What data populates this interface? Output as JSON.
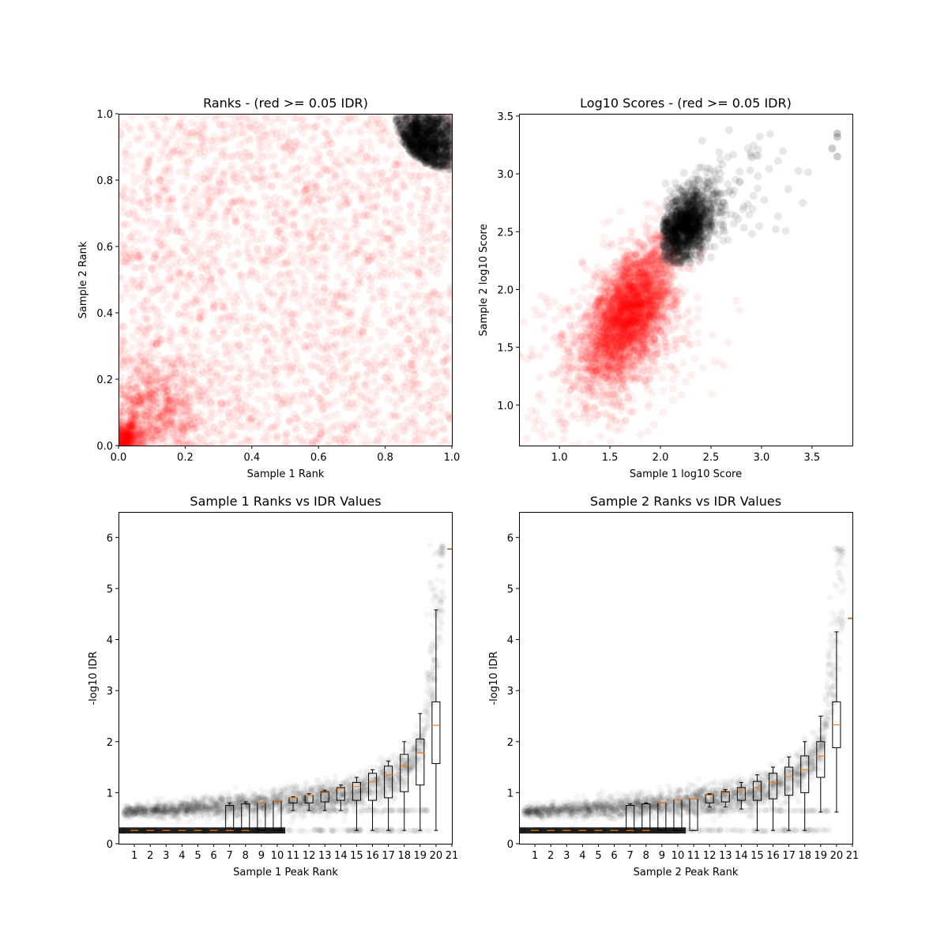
{
  "chart_data": [
    {
      "type": "scatter",
      "title": "Ranks - (red >= 0.05 IDR)",
      "xlabel": "Sample 1 Rank",
      "ylabel": "Sample 2 Rank",
      "xlim": [
        0,
        1
      ],
      "ylim": [
        0,
        1
      ],
      "xticks": [
        "0.0",
        "0.2",
        "0.4",
        "0.6",
        "0.8",
        "1.0"
      ],
      "yticks": [
        "0.0",
        "0.2",
        "0.4",
        "0.6",
        "0.8",
        "1.0"
      ],
      "series": [
        {
          "color": "#ff0000",
          "opacity": 0.06,
          "clusters": [
            {
              "cx": 0.5,
              "cy": 0.5,
              "sx": 0.3,
              "sy": 0.3,
              "n": 2600,
              "uniform": true
            },
            {
              "cx": 0.1,
              "cy": 0.1,
              "sx": 0.09,
              "sy": 0.09,
              "n": 900
            },
            {
              "cx": 0.02,
              "cy": 0.02,
              "sx": 0.025,
              "sy": 0.025,
              "n": 450
            }
          ]
        },
        {
          "color": "#000000",
          "opacity": 0.08,
          "clusters": [
            {
              "cx": 0.91,
              "cy": 0.91,
              "sx": 0.07,
              "sy": 0.07,
              "n": 1300,
              "radius": 0.17
            }
          ]
        }
      ]
    },
    {
      "type": "scatter",
      "title": "Log10 Scores - (red >= 0.05 IDR)",
      "xlabel": "Sample 1 log10 Score",
      "ylabel": "Sample 2 log10 Score",
      "xlim": [
        0.6,
        3.9
      ],
      "ylim": [
        0.65,
        3.52
      ],
      "xticks": [
        "1.0",
        "1.5",
        "2.0",
        "2.5",
        "3.0",
        "3.5"
      ],
      "yticks": [
        "1.0",
        "1.5",
        "2.0",
        "2.5",
        "3.0",
        "3.5"
      ],
      "series": [
        {
          "color": "#ff0000",
          "opacity": 0.06,
          "clusters": [
            {
              "cx": 1.7,
              "cy": 1.8,
              "sx": 0.22,
              "sy": 0.3,
              "n": 3200,
              "rho": 0.55
            },
            {
              "cx": 1.5,
              "cy": 1.4,
              "sx": 0.45,
              "sy": 0.4,
              "n": 500,
              "rho": 0.3
            }
          ]
        },
        {
          "color": "#000000",
          "opacity": 0.09,
          "clusters": [
            {
              "cx": 2.25,
              "cy": 2.55,
              "sx": 0.15,
              "sy": 0.17,
              "n": 1300,
              "rho": 0.4,
              "minx": 2.02,
              "miny": 2.22
            },
            {
              "cx": 2.7,
              "cy": 2.9,
              "sx": 0.3,
              "sy": 0.25,
              "n": 60,
              "rho": 0.3,
              "minx": 2.3,
              "miny": 2.3
            }
          ]
        }
      ],
      "outliers": [
        [
          3.75,
          3.35
        ],
        [
          3.75,
          3.32
        ],
        [
          3.75,
          3.15
        ],
        [
          3.7,
          3.22
        ]
      ]
    },
    {
      "type": "box",
      "title": "Sample 1 Ranks vs IDR Values",
      "xlabel": "Sample 1 Peak Rank",
      "ylabel": "-log10 IDR",
      "xlim": [
        0,
        21
      ],
      "ylim": [
        0,
        6.5
      ],
      "xticks": [
        "1",
        "2",
        "3",
        "4",
        "5",
        "6",
        "7",
        "8",
        "9",
        "10",
        "11",
        "12",
        "13",
        "14",
        "15",
        "16",
        "17",
        "18",
        "19",
        "20",
        "21"
      ],
      "yticks": [
        "0",
        "1",
        "2",
        "3",
        "4",
        "5",
        "6"
      ],
      "boxes": [
        {
          "pos": 1,
          "q1": 0.26,
          "med": 0.26,
          "q3": 0.26,
          "lo": 0.26,
          "hi": 0.26
        },
        {
          "pos": 2,
          "q1": 0.26,
          "med": 0.26,
          "q3": 0.26,
          "lo": 0.26,
          "hi": 0.26
        },
        {
          "pos": 3,
          "q1": 0.26,
          "med": 0.26,
          "q3": 0.26,
          "lo": 0.26,
          "hi": 0.26
        },
        {
          "pos": 4,
          "q1": 0.26,
          "med": 0.26,
          "q3": 0.26,
          "lo": 0.26,
          "hi": 0.26
        },
        {
          "pos": 5,
          "q1": 0.26,
          "med": 0.26,
          "q3": 0.26,
          "lo": 0.26,
          "hi": 0.26
        },
        {
          "pos": 6,
          "q1": 0.26,
          "med": 0.26,
          "q3": 0.26,
          "lo": 0.26,
          "hi": 0.26
        },
        {
          "pos": 7,
          "q1": 0.26,
          "med": 0.26,
          "q3": 0.75,
          "lo": 0.26,
          "hi": 0.8
        },
        {
          "pos": 8,
          "q1": 0.26,
          "med": 0.26,
          "q3": 0.78,
          "lo": 0.26,
          "hi": 0.82
        },
        {
          "pos": 9,
          "q1": 0.26,
          "med": 0.8,
          "q3": 0.8,
          "lo": 0.26,
          "hi": 0.8
        },
        {
          "pos": 10,
          "q1": 0.26,
          "med": 0.84,
          "q3": 0.84,
          "lo": 0.26,
          "hi": 0.84
        },
        {
          "pos": 11,
          "q1": 0.8,
          "med": 0.9,
          "q3": 0.9,
          "lo": 0.65,
          "hi": 0.92
        },
        {
          "pos": 12,
          "q1": 0.8,
          "med": 0.95,
          "q3": 0.95,
          "lo": 0.65,
          "hi": 0.98
        },
        {
          "pos": 13,
          "q1": 0.82,
          "med": 1.0,
          "q3": 1.02,
          "lo": 0.65,
          "hi": 1.05
        },
        {
          "pos": 14,
          "q1": 0.85,
          "med": 1.07,
          "q3": 1.1,
          "lo": 0.65,
          "hi": 1.15
        },
        {
          "pos": 15,
          "q1": 0.85,
          "med": 1.12,
          "q3": 1.2,
          "lo": 0.26,
          "hi": 1.3
        },
        {
          "pos": 16,
          "q1": 0.85,
          "med": 1.22,
          "q3": 1.38,
          "lo": 0.26,
          "hi": 1.45
        },
        {
          "pos": 17,
          "q1": 0.9,
          "med": 1.35,
          "q3": 1.52,
          "lo": 0.26,
          "hi": 1.62
        },
        {
          "pos": 18,
          "q1": 1.02,
          "med": 1.52,
          "q3": 1.75,
          "lo": 0.26,
          "hi": 2.0
        },
        {
          "pos": 19,
          "q1": 1.15,
          "med": 1.78,
          "q3": 2.05,
          "lo": 0.26,
          "hi": 2.55
        },
        {
          "pos": 20,
          "q1": 1.57,
          "med": 2.32,
          "q3": 2.78,
          "lo": 0.26,
          "hi": 4.58
        },
        {
          "pos": 21,
          "q1": 5.78,
          "med": 5.78,
          "q3": 5.78,
          "lo": 5.78,
          "hi": 5.78
        }
      ],
      "tail_max": 5.85
    },
    {
      "type": "box",
      "title": "Sample 2 Ranks vs IDR Values",
      "xlabel": "Sample 2 Peak Rank",
      "ylabel": "-log10 IDR",
      "xlim": [
        0,
        21
      ],
      "ylim": [
        0,
        6.5
      ],
      "xticks": [
        "1",
        "2",
        "3",
        "4",
        "5",
        "6",
        "7",
        "8",
        "9",
        "10",
        "11",
        "12",
        "13",
        "14",
        "15",
        "16",
        "17",
        "18",
        "19",
        "20",
        "21"
      ],
      "yticks": [
        "0",
        "1",
        "2",
        "3",
        "4",
        "5",
        "6"
      ],
      "boxes": [
        {
          "pos": 1,
          "q1": 0.26,
          "med": 0.26,
          "q3": 0.26,
          "lo": 0.26,
          "hi": 0.26
        },
        {
          "pos": 2,
          "q1": 0.26,
          "med": 0.26,
          "q3": 0.26,
          "lo": 0.26,
          "hi": 0.26
        },
        {
          "pos": 3,
          "q1": 0.26,
          "med": 0.26,
          "q3": 0.26,
          "lo": 0.26,
          "hi": 0.26
        },
        {
          "pos": 4,
          "q1": 0.26,
          "med": 0.26,
          "q3": 0.26,
          "lo": 0.26,
          "hi": 0.26
        },
        {
          "pos": 5,
          "q1": 0.26,
          "med": 0.26,
          "q3": 0.26,
          "lo": 0.26,
          "hi": 0.26
        },
        {
          "pos": 6,
          "q1": 0.26,
          "med": 0.26,
          "q3": 0.26,
          "lo": 0.26,
          "hi": 0.26
        },
        {
          "pos": 7,
          "q1": 0.26,
          "med": 0.26,
          "q3": 0.75,
          "lo": 0.26,
          "hi": 0.78
        },
        {
          "pos": 8,
          "q1": 0.26,
          "med": 0.26,
          "q3": 0.78,
          "lo": 0.26,
          "hi": 0.8
        },
        {
          "pos": 9,
          "q1": 0.26,
          "med": 0.8,
          "q3": 0.8,
          "lo": 0.26,
          "hi": 0.8
        },
        {
          "pos": 10,
          "q1": 0.26,
          "med": 0.86,
          "q3": 0.86,
          "lo": 0.26,
          "hi": 0.86
        },
        {
          "pos": 11,
          "q1": 0.26,
          "med": 0.88,
          "q3": 0.88,
          "lo": 0.26,
          "hi": 0.88
        },
        {
          "pos": 12,
          "q1": 0.8,
          "med": 0.95,
          "q3": 0.96,
          "lo": 0.72,
          "hi": 0.98
        },
        {
          "pos": 13,
          "q1": 0.82,
          "med": 1.0,
          "q3": 1.02,
          "lo": 0.72,
          "hi": 1.06
        },
        {
          "pos": 14,
          "q1": 0.85,
          "med": 1.05,
          "q3": 1.1,
          "lo": 0.68,
          "hi": 1.2
        },
        {
          "pos": 15,
          "q1": 0.85,
          "med": 1.1,
          "q3": 1.22,
          "lo": 0.26,
          "hi": 1.35
        },
        {
          "pos": 16,
          "q1": 0.88,
          "med": 1.2,
          "q3": 1.38,
          "lo": 0.26,
          "hi": 1.5
        },
        {
          "pos": 17,
          "q1": 0.95,
          "med": 1.32,
          "q3": 1.5,
          "lo": 0.26,
          "hi": 1.7
        },
        {
          "pos": 18,
          "q1": 1.0,
          "med": 1.45,
          "q3": 1.72,
          "lo": 0.26,
          "hi": 2.0
        },
        {
          "pos": 19,
          "q1": 1.3,
          "med": 1.72,
          "q3": 2.0,
          "lo": 0.62,
          "hi": 2.5
        },
        {
          "pos": 20,
          "q1": 1.88,
          "med": 2.33,
          "q3": 2.78,
          "lo": 0.62,
          "hi": 4.15
        },
        {
          "pos": 21,
          "q1": 4.42,
          "med": 4.42,
          "q3": 4.42,
          "lo": 4.42,
          "hi": 4.42
        }
      ],
      "tail_max": 5.8
    }
  ]
}
